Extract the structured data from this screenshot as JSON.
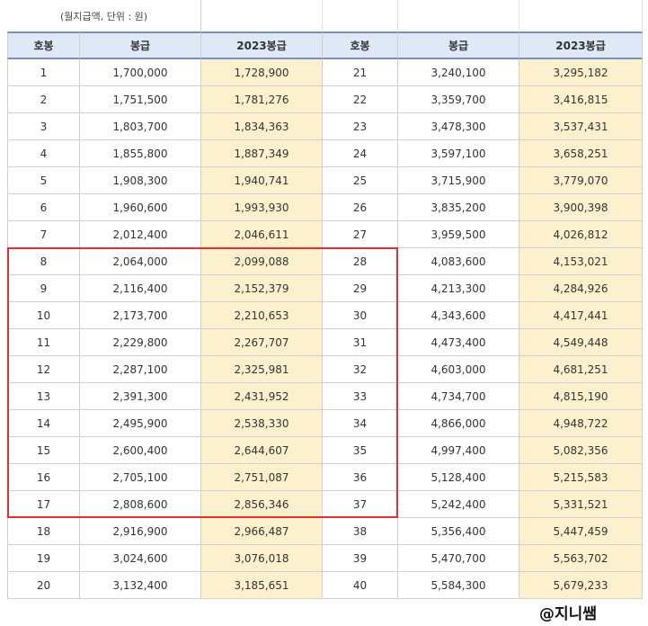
{
  "note": "(월지급액, 단위 : 원)",
  "headers": [
    "호봉",
    "봉급",
    "2023봉급",
    "호봉",
    "봉급",
    "2023봉급"
  ],
  "rows": [
    [
      "1",
      "1,700,000",
      "1,728,900",
      "21",
      "3,240,100",
      "3,295,182"
    ],
    [
      "2",
      "1,751,500",
      "1,781,276",
      "22",
      "3,359,700",
      "3,416,815"
    ],
    [
      "3",
      "1,803,700",
      "1,834,363",
      "23",
      "3,478,300",
      "3,537,431"
    ],
    [
      "4",
      "1,855,800",
      "1,887,349",
      "24",
      "3,597,100",
      "3,658,251"
    ],
    [
      "5",
      "1,908,300",
      "1,940,741",
      "25",
      "3,715,900",
      "3,779,070"
    ],
    [
      "6",
      "1,960,600",
      "1,993,930",
      "26",
      "3,835,200",
      "3,900,398"
    ],
    [
      "7",
      "2,012,400",
      "2,046,611",
      "27",
      "3,959,500",
      "4,026,812"
    ],
    [
      "8",
      "2,064,000",
      "2,099,088",
      "28",
      "4,083,600",
      "4,153,021"
    ],
    [
      "9",
      "2,116,400",
      "2,152,379",
      "29",
      "4,213,300",
      "4,284,926"
    ],
    [
      "10",
      "2,173,700",
      "2,210,653",
      "30",
      "4,343,600",
      "4,417,441"
    ],
    [
      "11",
      "2,229,800",
      "2,267,707",
      "31",
      "4,473,400",
      "4,549,448"
    ],
    [
      "12",
      "2,287,100",
      "2,325,981",
      "32",
      "4,603,000",
      "4,681,251"
    ],
    [
      "13",
      "2,391,300",
      "2,431,952",
      "33",
      "4,734,700",
      "4,815,190"
    ],
    [
      "14",
      "2,495,900",
      "2,538,330",
      "34",
      "4,866,000",
      "4,948,722"
    ],
    [
      "15",
      "2,600,400",
      "2,644,607",
      "35",
      "4,997,400",
      "5,082,356"
    ],
    [
      "16",
      "2,705,100",
      "2,751,087",
      "36",
      "5,128,400",
      "5,215,583"
    ],
    [
      "17",
      "2,808,600",
      "2,856,346",
      "37",
      "5,242,400",
      "5,331,521"
    ],
    [
      "18",
      "2,916,900",
      "2,966,487",
      "38",
      "5,356,400",
      "5,447,459"
    ],
    [
      "19",
      "3,024,600",
      "3,076,018",
      "39",
      "5,470,700",
      "5,563,702"
    ],
    [
      "20",
      "3,132,400",
      "3,185,651",
      "40",
      "5,584,300",
      "5,679,233"
    ]
  ],
  "watermark": "@지니쌤",
  "highlight_color": "#fdf1cd",
  "header_color": "#dfe8f7",
  "box_color": "#e03030"
}
